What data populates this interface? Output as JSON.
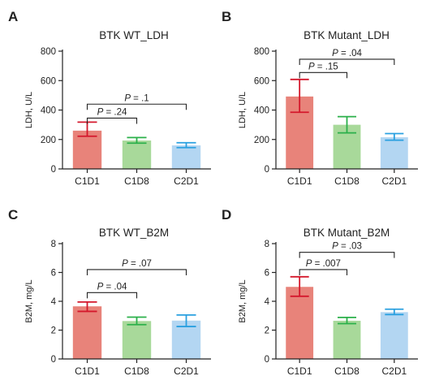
{
  "chart_data": [
    {
      "type": "bar",
      "panel": "A",
      "title": "BTK WT_LDH",
      "ylabel": "LDH, U/L",
      "ylim": [
        0,
        800
      ],
      "yticks": [
        0,
        200,
        400,
        600,
        800
      ],
      "categories": [
        "C1D1",
        "C1D8",
        "C2D1"
      ],
      "values": [
        260,
        193,
        160
      ],
      "err_low": [
        222,
        175,
        145
      ],
      "err_high": [
        318,
        213,
        178
      ],
      "colors": [
        "#e8837a",
        "#a8d99a",
        "#b3d6f2"
      ],
      "err_colors": [
        "#d4182c",
        "#2bb04a",
        "#2aa0e0"
      ],
      "annotations": [
        {
          "from": 0,
          "to": 1,
          "text": "P = .24",
          "y": 345
        },
        {
          "from": 0,
          "to": 2,
          "text": "P = .1",
          "y": 440
        }
      ]
    },
    {
      "type": "bar",
      "panel": "B",
      "title": "BTK Mutant_LDH",
      "ylabel": "LDH, U/L",
      "ylim": [
        0,
        800
      ],
      "yticks": [
        0,
        200,
        400,
        600,
        800
      ],
      "categories": [
        "C1D1",
        "C1D8",
        "C2D1"
      ],
      "values": [
        492,
        300,
        215
      ],
      "err_low": [
        385,
        245,
        195
      ],
      "err_high": [
        608,
        355,
        240
      ],
      "colors": [
        "#e8837a",
        "#a8d99a",
        "#b3d6f2"
      ],
      "err_colors": [
        "#d4182c",
        "#2bb04a",
        "#2aa0e0"
      ],
      "annotations": [
        {
          "from": 0,
          "to": 1,
          "text": "P = .15",
          "y": 655
        },
        {
          "from": 0,
          "to": 2,
          "text": "P = .04",
          "y": 745
        }
      ]
    },
    {
      "type": "bar",
      "panel": "C",
      "title": "BTK WT_B2M",
      "ylabel": "B2M, mg/L",
      "ylim": [
        0,
        8
      ],
      "yticks": [
        0,
        2,
        4,
        6,
        8
      ],
      "categories": [
        "C1D1",
        "C1D8",
        "C2D1"
      ],
      "values": [
        3.65,
        2.63,
        2.66
      ],
      "err_low": [
        3.3,
        2.38,
        2.25
      ],
      "err_high": [
        3.95,
        2.9,
        3.05
      ],
      "colors": [
        "#e8837a",
        "#a8d99a",
        "#b3d6f2"
      ],
      "err_colors": [
        "#d4182c",
        "#2bb04a",
        "#2aa0e0"
      ],
      "annotations": [
        {
          "from": 0,
          "to": 1,
          "text": "P = .04",
          "y": 4.6
        },
        {
          "from": 0,
          "to": 2,
          "text": "P = .07",
          "y": 6.2
        }
      ]
    },
    {
      "type": "bar",
      "panel": "D",
      "title": "BTK Mutant_B2M",
      "ylabel": "B2M, mg/L",
      "ylim": [
        0,
        8
      ],
      "yticks": [
        0,
        2,
        4,
        6,
        8
      ],
      "categories": [
        "C1D1",
        "C1D8",
        "C2D1"
      ],
      "values": [
        5.0,
        2.65,
        3.25
      ],
      "err_low": [
        4.35,
        2.45,
        3.08
      ],
      "err_high": [
        5.7,
        2.88,
        3.45
      ],
      "colors": [
        "#e8837a",
        "#a8d99a",
        "#b3d6f2"
      ],
      "err_colors": [
        "#d4182c",
        "#2bb04a",
        "#2aa0e0"
      ],
      "annotations": [
        {
          "from": 0,
          "to": 1,
          "text": "P = .007",
          "y": 6.2
        },
        {
          "from": 0,
          "to": 2,
          "text": "P = .03",
          "y": 7.4
        }
      ]
    }
  ]
}
